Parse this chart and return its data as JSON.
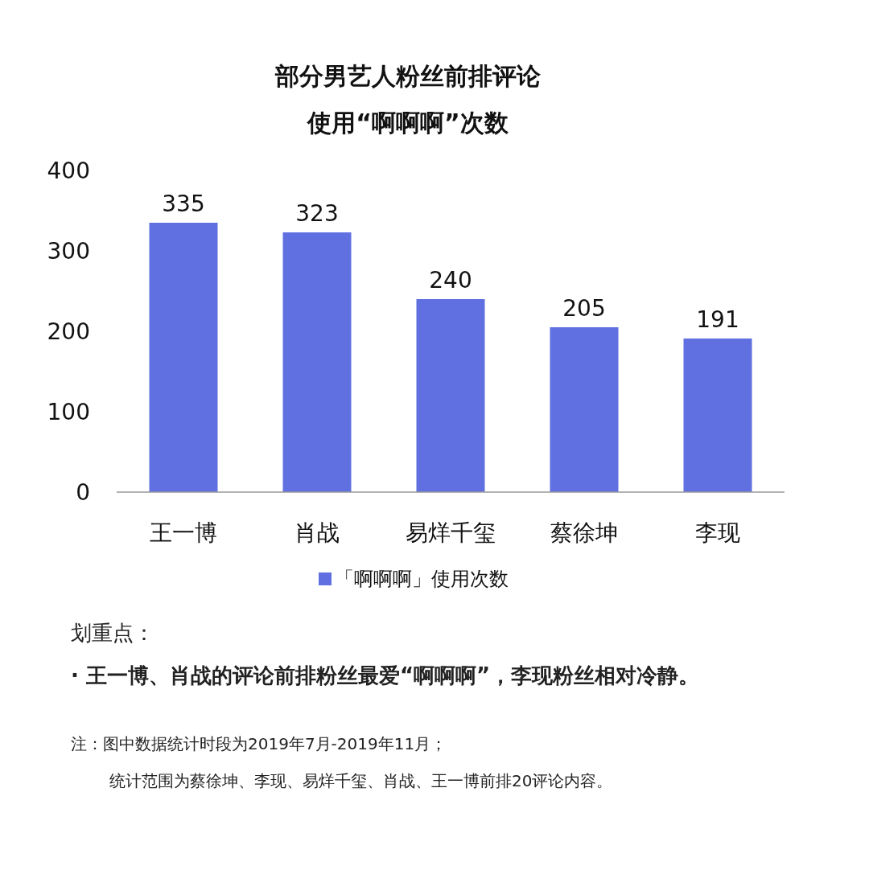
{
  "chart_data": {
    "type": "bar",
    "title": "部分男艺人粉丝前排评论",
    "subtitle": "使用“啊啊啊”次数",
    "categories": [
      "王一博",
      "肖战",
      "易烊千玺",
      "蔡徐坤",
      "李现"
    ],
    "series": [
      {
        "name": "「啊啊啊」使用次数",
        "color": "#6070e0",
        "values": [
          335,
          323,
          240,
          205,
          191
        ]
      }
    ],
    "ylim": [
      0,
      400
    ],
    "yticks": [
      0,
      100,
      200,
      300,
      400
    ],
    "data_labels": true,
    "grid": false,
    "legend": "bottom",
    "annotations": [
      "划重点：",
      "· 王一博、肖战的评论前排粉丝最爱“啊啊啊”，李现粉丝相对冷静。",
      "注：图中数据统计时段为2019年7月-2019年11月；",
      "统计范围为蔡徐坤、李现、易烊千玺、肖战、王一博前排20评论内容。"
    ]
  }
}
